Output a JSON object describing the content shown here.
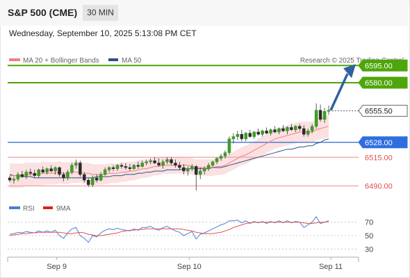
{
  "header": {
    "title": "S&P 500 (CME)",
    "timeframe": "30 MIN",
    "datetime": "Wednesday, September 10, 2025 5:13:08 PM CET"
  },
  "legend": {
    "bollinger_label": "MA 20 + Bollinger Bands",
    "ma50_label": "MA 50",
    "credit": "Research © 2025 Trading Central"
  },
  "indicator_legend": {
    "rsi_label": "RSI",
    "ma9_label": "9MA"
  },
  "colors": {
    "green": "#4ea60a",
    "blue": "#4a7ed4",
    "red": "#e05050",
    "bollinger_fill": "#fbdede",
    "ma20": "#f08080",
    "ma50": "#2c4f8a",
    "arrow": "#3060a0"
  },
  "chart_data": {
    "type": "candlestick",
    "price_range": [
      6480,
      6600
    ],
    "levels": [
      {
        "value": 6595.0,
        "label": "6595.00",
        "kind": "target"
      },
      {
        "value": 6580.0,
        "label": "6580.00",
        "kind": "target"
      },
      {
        "value": 6555.5,
        "label": "6555.50",
        "kind": "last"
      },
      {
        "value": 6528.0,
        "label": "6528.00",
        "kind": "pivot"
      },
      {
        "value": 6515.0,
        "label": "6515.00",
        "kind": "support"
      },
      {
        "value": 6490.0,
        "label": "6490.00",
        "kind": "support"
      }
    ],
    "x_ticks": [
      "Sep 9",
      "Sep 10",
      "Sep 11"
    ],
    "rsi_ticks": [
      70,
      50,
      30
    ],
    "rsi_range": [
      20,
      80
    ],
    "candles": [
      [
        6497,
        6499,
        6493,
        6495
      ],
      [
        6495,
        6498,
        6492,
        6496
      ],
      [
        6496,
        6502,
        6494,
        6500
      ],
      [
        6500,
        6503,
        6497,
        6498
      ],
      [
        6498,
        6504,
        6496,
        6502
      ],
      [
        6502,
        6505,
        6499,
        6501
      ],
      [
        6501,
        6504,
        6497,
        6499
      ],
      [
        6499,
        6505,
        6497,
        6504
      ],
      [
        6504,
        6507,
        6501,
        6502
      ],
      [
        6502,
        6506,
        6500,
        6505
      ],
      [
        6505,
        6508,
        6502,
        6503
      ],
      [
        6503,
        6507,
        6500,
        6506
      ],
      [
        6506,
        6507,
        6498,
        6500
      ],
      [
        6500,
        6502,
        6494,
        6497
      ],
      [
        6497,
        6504,
        6495,
        6502
      ],
      [
        6502,
        6510,
        6500,
        6508
      ],
      [
        6508,
        6513,
        6505,
        6510
      ],
      [
        6510,
        6512,
        6498,
        6500
      ],
      [
        6500,
        6502,
        6493,
        6495
      ],
      [
        6495,
        6497,
        6489,
        6491
      ],
      [
        6491,
        6499,
        6489,
        6497
      ],
      [
        6497,
        6500,
        6493,
        6495
      ],
      [
        6495,
        6502,
        6494,
        6500
      ],
      [
        6500,
        6506,
        6499,
        6504
      ],
      [
        6504,
        6507,
        6502,
        6506
      ],
      [
        6506,
        6508,
        6503,
        6505
      ],
      [
        6505,
        6509,
        6503,
        6508
      ],
      [
        6508,
        6510,
        6505,
        6507
      ],
      [
        6507,
        6510,
        6504,
        6506
      ],
      [
        6506,
        6509,
        6503,
        6505
      ],
      [
        6505,
        6509,
        6504,
        6508
      ],
      [
        6508,
        6511,
        6505,
        6507
      ],
      [
        6507,
        6512,
        6506,
        6510
      ],
      [
        6510,
        6513,
        6508,
        6511
      ],
      [
        6511,
        6514,
        6509,
        6512
      ],
      [
        6512,
        6515,
        6509,
        6510
      ],
      [
        6510,
        6514,
        6507,
        6508
      ],
      [
        6508,
        6513,
        6505,
        6511
      ],
      [
        6511,
        6515,
        6509,
        6513
      ],
      [
        6513,
        6515,
        6508,
        6510
      ],
      [
        6510,
        6513,
        6506,
        6508
      ],
      [
        6508,
        6511,
        6504,
        6506
      ],
      [
        6506,
        6509,
        6500,
        6503
      ],
      [
        6503,
        6507,
        6499,
        6505
      ],
      [
        6505,
        6509,
        6503,
        6507
      ],
      [
        6507,
        6508,
        6486,
        6500
      ],
      [
        6500,
        6506,
        6496,
        6503
      ],
      [
        6503,
        6507,
        6500,
        6505
      ],
      [
        6505,
        6510,
        6503,
        6508
      ],
      [
        6508,
        6512,
        6506,
        6511
      ],
      [
        6511,
        6515,
        6509,
        6514
      ],
      [
        6514,
        6518,
        6512,
        6516
      ],
      [
        6516,
        6521,
        6514,
        6519
      ],
      [
        6519,
        6533,
        6517,
        6531
      ],
      [
        6531,
        6536,
        6527,
        6533
      ],
      [
        6533,
        6538,
        6530,
        6535
      ],
      [
        6535,
        6539,
        6529,
        6531
      ],
      [
        6531,
        6537,
        6529,
        6536
      ],
      [
        6536,
        6539,
        6532,
        6533
      ],
      [
        6533,
        6538,
        6531,
        6537
      ],
      [
        6537,
        6540,
        6534,
        6535
      ],
      [
        6535,
        6539,
        6533,
        6538
      ],
      [
        6538,
        6541,
        6535,
        6536
      ],
      [
        6536,
        6540,
        6534,
        6539
      ],
      [
        6539,
        6542,
        6536,
        6537
      ],
      [
        6537,
        6541,
        6535,
        6540
      ],
      [
        6540,
        6543,
        6537,
        6538
      ],
      [
        6538,
        6542,
        6535,
        6541
      ],
      [
        6541,
        6544,
        6538,
        6539
      ],
      [
        6539,
        6543,
        6537,
        6542
      ],
      [
        6542,
        6544,
        6538,
        6540
      ],
      [
        6540,
        6543,
        6533,
        6535
      ],
      [
        6535,
        6540,
        6533,
        6538
      ],
      [
        6538,
        6544,
        6536,
        6542
      ],
      [
        6542,
        6562,
        6540,
        6556
      ],
      [
        6556,
        6561,
        6546,
        6548
      ],
      [
        6548,
        6558,
        6545,
        6555
      ],
      [
        6555,
        6560,
        6552,
        6556
      ]
    ],
    "rsi": [
      52,
      53,
      55,
      54,
      56,
      55,
      54,
      57,
      55,
      57,
      55,
      58,
      50,
      46,
      54,
      60,
      62,
      50,
      46,
      40,
      50,
      48,
      54,
      58,
      60,
      59,
      61,
      59,
      58,
      57,
      60,
      58,
      62,
      62,
      64,
      60,
      58,
      62,
      64,
      60,
      57,
      55,
      50,
      53,
      56,
      45,
      52,
      54,
      57,
      60,
      63,
      66,
      68,
      72,
      72,
      73,
      69,
      72,
      68,
      71,
      69,
      71,
      68,
      71,
      69,
      72,
      69,
      72,
      69,
      71,
      70,
      62,
      66,
      70,
      78,
      68,
      70,
      72
    ],
    "rsi_ma9": [
      50,
      51,
      52,
      53,
      53,
      54,
      54,
      55,
      55,
      55,
      55,
      55,
      55,
      54,
      53,
      53,
      54,
      55,
      54,
      52,
      51,
      50,
      50,
      51,
      52,
      53,
      54,
      56,
      57,
      58,
      58,
      59,
      59,
      60,
      60,
      60,
      60,
      60,
      60,
      60,
      60,
      60,
      59,
      58,
      57,
      55,
      54,
      53,
      53,
      53,
      54,
      55,
      57,
      59,
      62,
      64,
      66,
      68,
      69,
      70,
      70,
      70,
      70,
      70,
      70,
      70,
      70,
      70,
      70,
      70,
      70,
      69,
      68,
      68,
      69,
      70,
      70,
      71
    ],
    "ma20": [
      6499,
      6499,
      6499,
      6499,
      6500,
      6500,
      6500,
      6500,
      6501,
      6501,
      6501,
      6501,
      6502,
      6501,
      6501,
      6502,
      6502,
      6502,
      6501,
      6501,
      6500,
      6500,
      6500,
      6500,
      6501,
      6501,
      6501,
      6502,
      6502,
      6503,
      6503,
      6504,
      6505,
      6505,
      6506,
      6507,
      6507,
      6508,
      6508,
      6508,
      6508,
      6508,
      6508,
      6508,
      6507,
      6506,
      6506,
      6506,
      6506,
      6506,
      6507,
      6507,
      6508,
      6510,
      6512,
      6514,
      6516,
      6517,
      6519,
      6521,
      6523,
      6525,
      6527,
      6529,
      6531,
      6532,
      6533,
      6534,
      6535,
      6536,
      6537,
      6537,
      6537,
      6537,
      6539,
      6540,
      6541,
      6542
    ],
    "ma50": [
      6500,
      6499,
      6499,
      6498,
      6498,
      6498,
      6497,
      6497,
      6497,
      6497,
      6497,
      6497,
      6497,
      6497,
      6497,
      6497,
      6497,
      6497,
      6497,
      6497,
      6497,
      6498,
      6498,
      6498,
      6498,
      6499,
      6499,
      6499,
      6500,
      6500,
      6500,
      6501,
      6501,
      6502,
      6502,
      6503,
      6503,
      6503,
      6504,
      6504,
      6504,
      6504,
      6505,
      6505,
      6505,
      6505,
      6505,
      6505,
      6505,
      6506,
      6506,
      6506,
      6507,
      6508,
      6509,
      6510,
      6511,
      6512,
      6513,
      6514,
      6515,
      6516,
      6517,
      6518,
      6519,
      6520,
      6521,
      6522,
      6522,
      6523,
      6524,
      6524,
      6525,
      6525,
      6527,
      6528,
      6530,
      6531
    ]
  }
}
